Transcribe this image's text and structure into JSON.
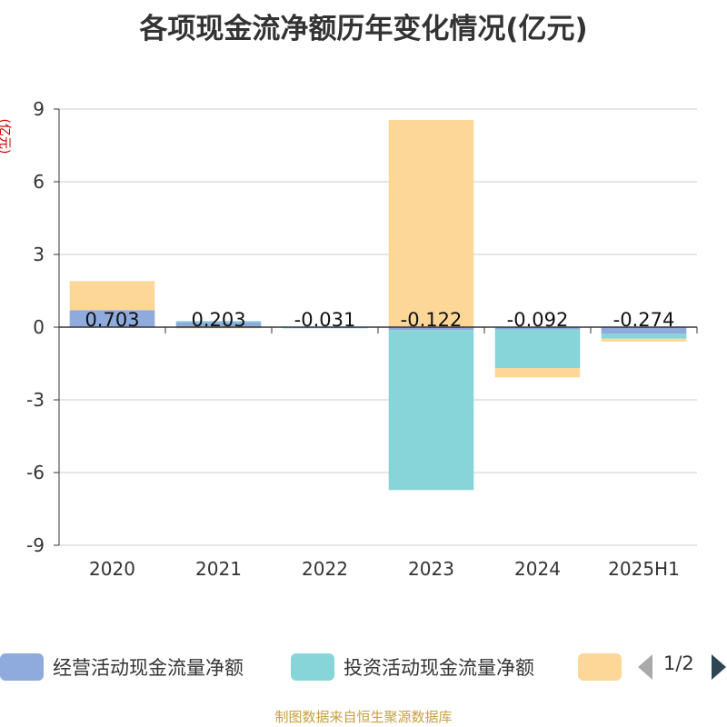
{
  "chart_data": {
    "type": "bar",
    "stacked": true,
    "title": "各项现金流净额历年变化情况(亿元)",
    "ylabel": "(亿元)",
    "categories": [
      "2020",
      "2021",
      "2022",
      "2023",
      "2024",
      "2025H1"
    ],
    "ylim": [
      -9,
      9
    ],
    "yticks": [
      9,
      6,
      3,
      0,
      -3,
      -6,
      -9
    ],
    "grid": true,
    "series": [
      {
        "name": "经营活动现金流量净额",
        "color": "#8faadc",
        "values": [
          0.703,
          0.203,
          -0.031,
          -0.122,
          -0.092,
          -0.274
        ]
      },
      {
        "name": "投资活动现金流量净额",
        "color": "#87d5d8",
        "values": [
          0.0,
          0.05,
          -0.02,
          -6.6,
          -1.6,
          -0.2
        ]
      },
      {
        "name": "",
        "color": "#fdd797",
        "values": [
          1.2,
          -0.05,
          0.01,
          8.55,
          -0.38,
          -0.12
        ]
      }
    ],
    "data_labels": [
      "0.703",
      "0.203",
      "-0.031",
      "-0.122",
      "-0.092",
      "-0.274"
    ]
  },
  "legend": {
    "items": [
      "经营活动现金流量净额",
      "投资活动现金流量净额",
      ""
    ],
    "page": "1/2"
  },
  "source": "制图数据来自恒生聚源数据库"
}
